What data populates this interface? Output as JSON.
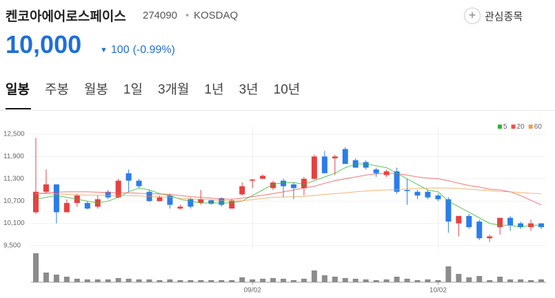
{
  "header": {
    "title": "켄코아에어로스페이스",
    "code": "274090",
    "separator": "•",
    "market": "KOSDAQ",
    "favorite": "관심종목",
    "price": "10,000",
    "change": "100",
    "change_pct": "(-0.99%)"
  },
  "tabs": [
    "일봉",
    "주봉",
    "월봉",
    "1일",
    "3개월",
    "1년",
    "3년",
    "10년"
  ],
  "chart_data": {
    "type": "candlestick",
    "categories": [
      null,
      null,
      null,
      null,
      null,
      null,
      null,
      null,
      null,
      null,
      null,
      null,
      null,
      null,
      null,
      null,
      null,
      null,
      null,
      null,
      null,
      "09/02",
      null,
      null,
      null,
      null,
      null,
      null,
      null,
      null,
      null,
      null,
      null,
      null,
      null,
      null,
      null,
      null,
      null,
      "10/02",
      null,
      null,
      null,
      null,
      null,
      null,
      null,
      null,
      null,
      null
    ],
    "open": [
      10400,
      10950,
      11150,
      10400,
      10650,
      10650,
      10550,
      10950,
      10800,
      11450,
      11250,
      10950,
      10700,
      10850,
      10500,
      10750,
      10650,
      10720,
      10780,
      10500,
      10880,
      11250,
      11300,
      11050,
      11250,
      11150,
      11050,
      11300,
      11900,
      11850,
      12100,
      11800,
      11750,
      11550,
      11400,
      11500,
      11000,
      10950,
      10950,
      10850,
      10750,
      10100,
      10300,
      10150,
      9700,
      10000,
      10250,
      10100,
      10000,
      10100
    ],
    "high": [
      12400,
      11550,
      11150,
      10750,
      10900,
      10700,
      10850,
      11000,
      11300,
      11550,
      11300,
      11000,
      10850,
      10900,
      10600,
      10800,
      11000,
      10750,
      10800,
      10750,
      11200,
      11300,
      11420,
      11250,
      11300,
      11200,
      11350,
      11950,
      12050,
      11950,
      12150,
      11850,
      11800,
      11600,
      11550,
      11600,
      11300,
      11000,
      11000,
      10900,
      10800,
      10300,
      10350,
      10200,
      9800,
      10250,
      10300,
      10150,
      10200,
      10100
    ],
    "low": [
      10350,
      10900,
      10100,
      10400,
      10550,
      10480,
      10500,
      10750,
      10780,
      10950,
      11050,
      10680,
      10700,
      10500,
      10480,
      10500,
      10600,
      10600,
      10550,
      10500,
      10850,
      11050,
      11300,
      11000,
      10800,
      10750,
      10850,
      11280,
      11450,
      11400,
      11700,
      11600,
      11550,
      11350,
      11350,
      10900,
      10600,
      10750,
      10750,
      10700,
      9850,
      9750,
      9950,
      9650,
      9600,
      9800,
      9900,
      9950,
      9900,
      9950
    ],
    "close": [
      10950,
      11150,
      10400,
      10650,
      10850,
      10500,
      10750,
      10800,
      11250,
      11250,
      11100,
      10700,
      10800,
      10600,
      10550,
      10550,
      10750,
      10630,
      10600,
      10720,
      11100,
      11280,
      11380,
      11200,
      11100,
      11050,
      11300,
      11900,
      11450,
      11900,
      11700,
      11600,
      11600,
      11450,
      11500,
      10950,
      10970,
      10850,
      10800,
      10750,
      10150,
      10300,
      10000,
      9700,
      9750,
      10250,
      10050,
      10000,
      10100,
      10000
    ],
    "volume": [
      42,
      14,
      11,
      8,
      5,
      4,
      4,
      4,
      6,
      5,
      4,
      4,
      3,
      4,
      3,
      3,
      3,
      3,
      3,
      3,
      7,
      4,
      5,
      6,
      5,
      3,
      5,
      17,
      10,
      8,
      6,
      5,
      4,
      3,
      4,
      8,
      5,
      3,
      4,
      3,
      23,
      12,
      7,
      9,
      3,
      8,
      4,
      4,
      3,
      4
    ],
    "series": [
      {
        "name": "5",
        "color": "#2eb82e",
        "values": [
          10750,
          10800,
          10850,
          10800,
          10750,
          10700,
          10650,
          10700,
          10800,
          10950,
          11050,
          11000,
          10900,
          10850,
          10750,
          10700,
          10650,
          10650,
          10650,
          10650,
          10700,
          10850,
          11000,
          11150,
          11200,
          11200,
          11150,
          11250,
          11350,
          11450,
          11600,
          11700,
          11700,
          11650,
          11600,
          11450,
          11300,
          11150,
          11000,
          10950,
          10700,
          10550,
          10400,
          10250,
          10100,
          10050,
          10050,
          10000,
          10050,
          10050
        ]
      },
      {
        "name": "20",
        "color": "#f05050",
        "values": [
          10900,
          10920,
          10940,
          10950,
          10950,
          10950,
          10940,
          10930,
          10920,
          10920,
          10910,
          10900,
          10890,
          10880,
          10850,
          10820,
          10800,
          10780,
          10760,
          10750,
          10780,
          10820,
          10860,
          10900,
          10950,
          11000,
          11050,
          11100,
          11180,
          11250,
          11300,
          11350,
          11400,
          11430,
          11450,
          11440,
          11400,
          11350,
          11320,
          11300,
          11250,
          11180,
          11120,
          11080,
          11020,
          11000,
          10950,
          10850,
          10720,
          10600
        ]
      },
      {
        "name": "60",
        "color": "#f0a050",
        "values": [
          10900,
          10900,
          10890,
          10880,
          10870,
          10860,
          10860,
          10850,
          10850,
          10850,
          10840,
          10830,
          10820,
          10800,
          10780,
          10760,
          10750,
          10740,
          10720,
          10700,
          10710,
          10740,
          10770,
          10800,
          10810,
          10820,
          10830,
          10850,
          10880,
          10900,
          10920,
          10950,
          10970,
          10990,
          11000,
          11010,
          11030,
          11040,
          11050,
          11050,
          11050,
          11040,
          11020,
          11000,
          10980,
          10960,
          10950,
          10930,
          10910,
          10900
        ]
      }
    ],
    "up_color": "#e84040",
    "down_color": "#2b7de9",
    "volume_color": "#8c8c8c",
    "ylim": [
      9500,
      12500
    ],
    "yticks": [
      {
        "value": 9500,
        "label": "9,500"
      },
      {
        "value": 10100,
        "label": "10,100"
      },
      {
        "value": 10700,
        "label": "10,700"
      },
      {
        "value": 11300,
        "label": "11,300"
      },
      {
        "value": 11900,
        "label": "11,900"
      },
      {
        "value": 12500,
        "label": "12,500"
      }
    ],
    "grid": true,
    "legend": "top-right"
  }
}
